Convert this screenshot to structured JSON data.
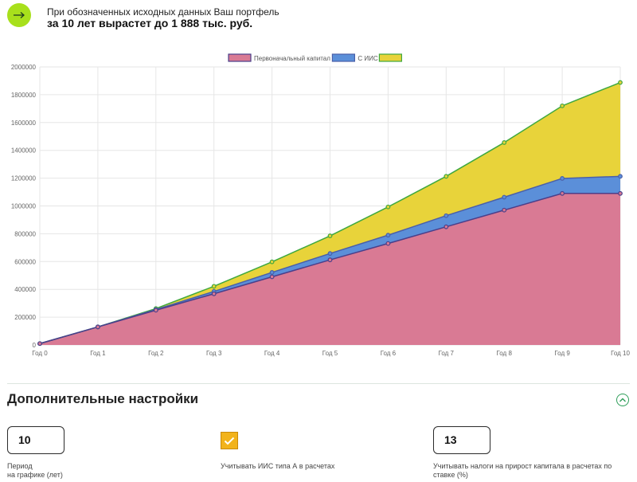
{
  "summary": {
    "line1": "При обозначенных исходных данных Ваш портфель",
    "line2": "за 10 лет вырастет до 1 888 тыс. руб."
  },
  "chart_data": {
    "type": "area",
    "title": "",
    "xlabel": "",
    "ylabel": "",
    "categories": [
      "Год 0",
      "Год 1",
      "Год 2",
      "Год 3",
      "Год 4",
      "Год 5",
      "Год 6",
      "Год 7",
      "Год 8",
      "Год 9",
      "Год 10"
    ],
    "ylim": [
      0,
      2000000
    ],
    "yticks": [
      0,
      200000,
      400000,
      600000,
      800000,
      1000000,
      1200000,
      1400000,
      1600000,
      1800000,
      2000000
    ],
    "legend_position": "top-center",
    "series": [
      {
        "name": "",
        "color": "#e8d33a",
        "line": "#3fa83f",
        "values": [
          10000,
          130000,
          262000,
          422000,
          598000,
          785000,
          993000,
          1213000,
          1456000,
          1720000,
          1888000
        ]
      },
      {
        "name": "С ИИС",
        "color": "#5b8fd9",
        "line": "#4a5fa8",
        "values": [
          10000,
          130000,
          255000,
          385000,
          522000,
          658000,
          790000,
          930000,
          1063000,
          1198000,
          1213000
        ]
      },
      {
        "name": "Первоначальный капитал",
        "color": "#d97a94",
        "line": "#4a3f8a",
        "values": [
          10000,
          130000,
          250000,
          368000,
          490000,
          612000,
          730000,
          850000,
          970000,
          1090000,
          1090000
        ]
      }
    ]
  },
  "settings": {
    "title": "Дополнительные настройки",
    "period_value": "10",
    "period_label_1": "Период",
    "period_label_2": "на графике (лет)",
    "iis_label": "Учитывать ИИС типа А в расчетах",
    "tax_value": "13",
    "tax_label_1": "Учитывать налоги на прирост капитала в расчетах по",
    "tax_label_2": "ставке (%)"
  },
  "colors": {
    "accent_green": "#a8e01c",
    "checkbox": "#f2b31b",
    "brand_green": "#2f9e5a"
  }
}
